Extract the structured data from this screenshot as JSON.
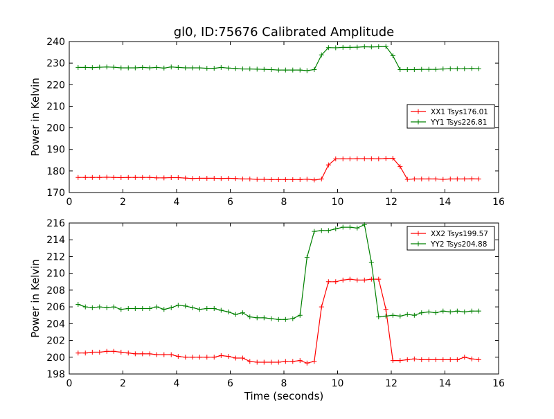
{
  "figure": {
    "title": "gl0, ID:75676 Calibrated Amplitude",
    "xlabel": "Time (seconds)"
  },
  "chart_data": [
    {
      "type": "line",
      "title": "gl0, ID:75676 Calibrated Amplitude",
      "xlabel": "",
      "ylabel": "Power in Kelvin",
      "xlim": [
        0,
        16
      ],
      "ylim": [
        170,
        240
      ],
      "xticks": [
        0,
        2,
        4,
        6,
        8,
        10,
        12,
        14,
        16
      ],
      "yticks": [
        170,
        180,
        190,
        200,
        210,
        220,
        230,
        240
      ],
      "grid": false,
      "legend_position": "center-right",
      "marker": "+",
      "x": [
        0.33,
        0.6,
        0.86,
        1.13,
        1.4,
        1.66,
        1.93,
        2.2,
        2.46,
        2.73,
        3.0,
        3.26,
        3.53,
        3.8,
        4.06,
        4.33,
        4.6,
        4.86,
        5.13,
        5.4,
        5.66,
        5.93,
        6.2,
        6.46,
        6.73,
        7.0,
        7.26,
        7.53,
        7.8,
        8.06,
        8.33,
        8.6,
        8.86,
        9.13,
        9.4,
        9.66,
        9.93,
        10.2,
        10.46,
        10.73,
        11.0,
        11.26,
        11.53,
        11.8,
        12.06,
        12.33,
        12.6,
        12.86,
        13.13,
        13.4,
        13.66,
        13.93,
        14.2,
        14.46,
        14.73,
        15.0,
        15.26
      ],
      "series": [
        {
          "name": "XX1 Tsys176.01",
          "color": "#ff0000",
          "values": [
            177.0,
            177.0,
            177.0,
            177.0,
            177.1,
            177.0,
            176.9,
            177.0,
            177.0,
            177.0,
            177.0,
            176.8,
            176.8,
            176.9,
            176.9,
            176.7,
            176.5,
            176.6,
            176.6,
            176.6,
            176.5,
            176.6,
            176.5,
            176.3,
            176.3,
            176.1,
            176.1,
            176.0,
            176.0,
            176.0,
            176.0,
            176.0,
            176.2,
            175.8,
            176.3,
            182.8,
            185.6,
            185.6,
            185.6,
            185.7,
            185.7,
            185.7,
            185.6,
            185.8,
            185.9,
            182.0,
            176.1,
            176.3,
            176.3,
            176.3,
            176.3,
            176.1,
            176.3,
            176.3,
            176.3,
            176.4,
            176.3
          ]
        },
        {
          "name": "YY1 Tsys226.81",
          "color": "#008000",
          "values": [
            228.0,
            228.0,
            227.9,
            228.1,
            228.2,
            228.1,
            227.8,
            227.8,
            227.8,
            228.0,
            227.8,
            228.0,
            227.7,
            228.2,
            228.0,
            227.8,
            227.8,
            227.8,
            227.6,
            227.6,
            228.0,
            227.7,
            227.5,
            227.3,
            227.3,
            227.2,
            227.1,
            227.0,
            226.8,
            226.8,
            226.8,
            226.8,
            226.5,
            227.0,
            233.8,
            237.2,
            237.1,
            237.3,
            237.3,
            237.4,
            237.6,
            237.5,
            237.6,
            237.7,
            233.4,
            227.0,
            227.0,
            227.0,
            227.1,
            227.1,
            227.1,
            227.3,
            227.4,
            227.4,
            227.4,
            227.5,
            227.4
          ]
        }
      ]
    },
    {
      "type": "line",
      "title": "",
      "xlabel": "Time (seconds)",
      "ylabel": "Power in Kelvin",
      "xlim": [
        0,
        16
      ],
      "ylim": [
        198,
        216
      ],
      "xticks": [
        0,
        2,
        4,
        6,
        8,
        10,
        12,
        14,
        16
      ],
      "yticks": [
        198,
        200,
        202,
        204,
        206,
        208,
        210,
        212,
        214,
        216
      ],
      "grid": false,
      "legend_position": "top-right",
      "marker": "+",
      "x": [
        0.33,
        0.6,
        0.86,
        1.13,
        1.4,
        1.66,
        1.93,
        2.2,
        2.46,
        2.73,
        3.0,
        3.26,
        3.53,
        3.8,
        4.06,
        4.33,
        4.6,
        4.86,
        5.13,
        5.4,
        5.66,
        5.93,
        6.2,
        6.46,
        6.73,
        7.0,
        7.26,
        7.53,
        7.8,
        8.06,
        8.33,
        8.6,
        8.86,
        9.13,
        9.4,
        9.66,
        9.93,
        10.2,
        10.46,
        10.73,
        11.0,
        11.26,
        11.53,
        11.8,
        12.06,
        12.33,
        12.6,
        12.86,
        13.13,
        13.4,
        13.66,
        13.93,
        14.2,
        14.46,
        14.73,
        15.0,
        15.26
      ],
      "series": [
        {
          "name": "XX2 Tsys199.57",
          "color": "#ff0000",
          "values": [
            200.5,
            200.5,
            200.6,
            200.6,
            200.7,
            200.7,
            200.6,
            200.5,
            200.4,
            200.4,
            200.4,
            200.3,
            200.3,
            200.3,
            200.1,
            200.0,
            200.0,
            200.0,
            200.0,
            200.0,
            200.2,
            200.1,
            199.9,
            199.9,
            199.5,
            199.4,
            199.4,
            199.4,
            199.4,
            199.5,
            199.5,
            199.6,
            199.3,
            199.5,
            206.0,
            209.0,
            209.0,
            209.2,
            209.3,
            209.2,
            209.2,
            209.3,
            209.3,
            205.7,
            199.6,
            199.6,
            199.7,
            199.8,
            199.7,
            199.7,
            199.7,
            199.7,
            199.7,
            199.7,
            200.0,
            199.8,
            199.7
          ]
        },
        {
          "name": "YY2 Tsys204.88",
          "color": "#008000",
          "values": [
            206.3,
            206.0,
            205.9,
            206.0,
            205.9,
            206.0,
            205.7,
            205.8,
            205.8,
            205.8,
            205.8,
            206.0,
            205.7,
            205.9,
            206.2,
            206.1,
            205.9,
            205.7,
            205.8,
            205.8,
            205.6,
            205.4,
            205.1,
            205.3,
            204.8,
            204.7,
            204.7,
            204.6,
            204.5,
            204.5,
            204.6,
            205.0,
            211.9,
            215.0,
            215.1,
            215.1,
            215.3,
            215.5,
            215.5,
            215.4,
            215.8,
            211.3,
            204.8,
            204.9,
            205.0,
            204.9,
            205.1,
            205.0,
            205.3,
            205.4,
            205.3,
            205.5,
            205.4,
            205.5,
            205.4,
            205.5,
            205.5
          ]
        }
      ]
    }
  ]
}
